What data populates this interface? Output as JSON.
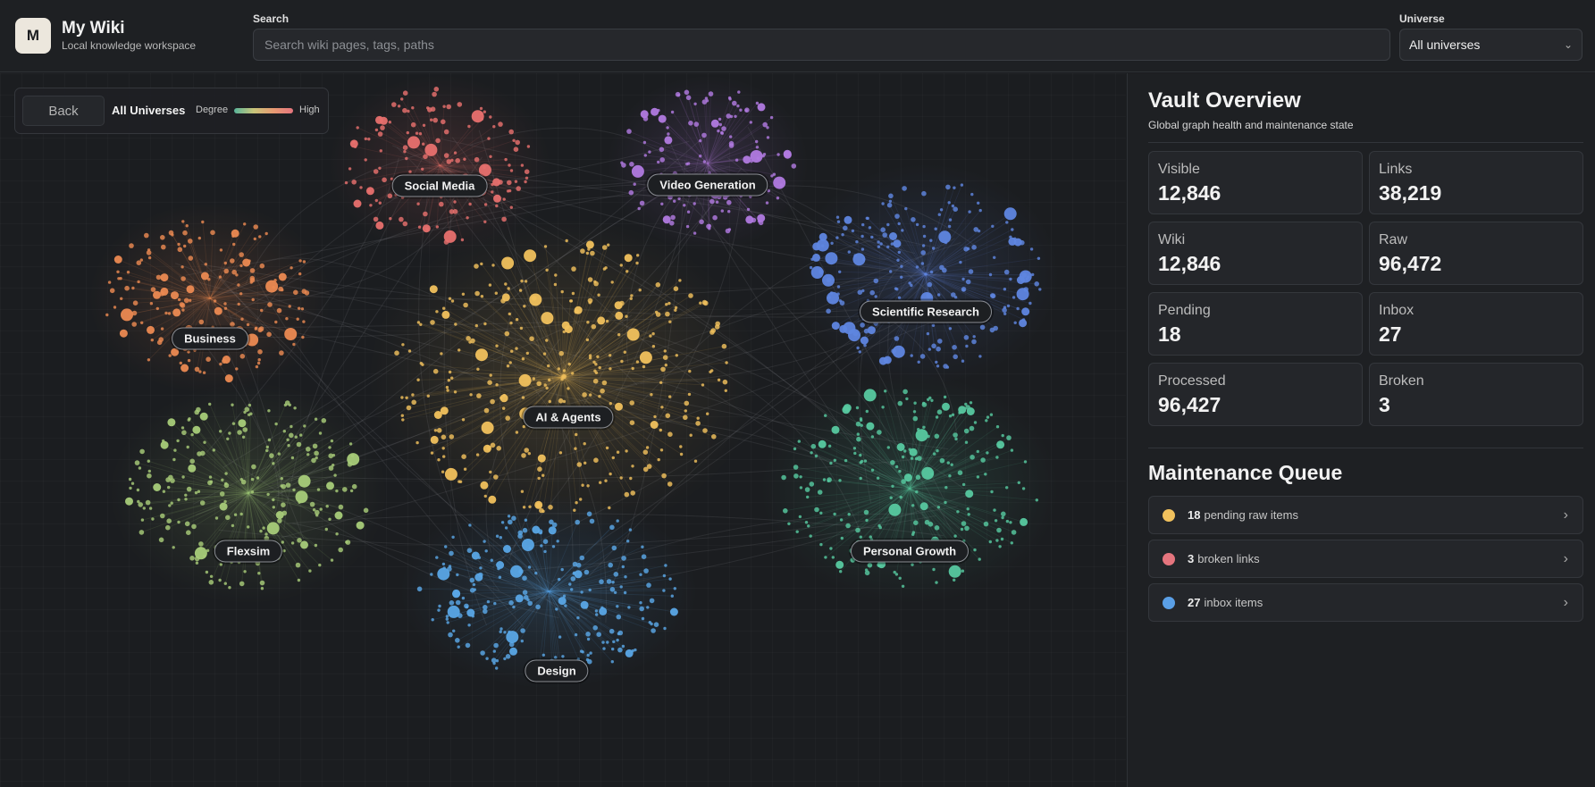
{
  "app": {
    "logo_letter": "M",
    "title": "My Wiki",
    "subtitle": "Local knowledge workspace"
  },
  "search": {
    "label": "Search",
    "placeholder": "Search wiki pages, tags, paths",
    "value": ""
  },
  "universe": {
    "label": "Universe",
    "selected": "All universes"
  },
  "graph": {
    "back_label": "Back",
    "breadcrumb": "All Universes",
    "degree_label": "Degree",
    "degree_high": "High",
    "clusters": [
      {
        "name": "Social Media",
        "color": "#e8706e"
      },
      {
        "name": "Video Generation",
        "color": "#b17ae0"
      },
      {
        "name": "Business",
        "color": "#ec8a52"
      },
      {
        "name": "AI & Agents",
        "color": "#f1c15d"
      },
      {
        "name": "Scientific Research",
        "color": "#5f86e0"
      },
      {
        "name": "Flexsim",
        "color": "#a8cc79"
      },
      {
        "name": "Personal Growth",
        "color": "#57c9a0"
      },
      {
        "name": "Design",
        "color": "#5aa7e6"
      }
    ]
  },
  "overview": {
    "title": "Vault Overview",
    "subtitle": "Global graph health and maintenance state",
    "stats": [
      {
        "label": "Visible",
        "value": "12,846"
      },
      {
        "label": "Links",
        "value": "38,219"
      },
      {
        "label": "Wiki",
        "value": "12,846"
      },
      {
        "label": "Raw",
        "value": "96,472"
      },
      {
        "label": "Pending",
        "value": "18"
      },
      {
        "label": "Inbox",
        "value": "27"
      },
      {
        "label": "Processed",
        "value": "96,427"
      },
      {
        "label": "Broken",
        "value": "3"
      }
    ]
  },
  "queue": {
    "title": "Maintenance Queue",
    "items": [
      {
        "count": "18",
        "text": "pending raw items",
        "color": "#f1c15d"
      },
      {
        "count": "3",
        "text": "broken links",
        "color": "#e5757e"
      },
      {
        "count": "27",
        "text": "inbox items",
        "color": "#5a9fe6"
      }
    ]
  }
}
